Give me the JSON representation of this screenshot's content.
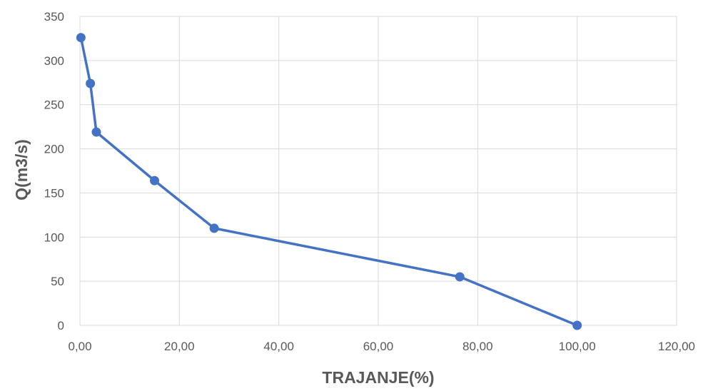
{
  "chart_data": {
    "type": "line",
    "title": "",
    "xlabel": "TRAJANJE(%)",
    "ylabel": "Q(m3/s)",
    "xlim": [
      0,
      120
    ],
    "ylim": [
      0,
      350
    ],
    "x_ticks": [
      "0,00",
      "20,00",
      "40,00",
      "60,00",
      "80,00",
      "100,00",
      "120,00"
    ],
    "y_ticks": [
      "0",
      "50",
      "100",
      "150",
      "200",
      "250",
      "300",
      "350"
    ],
    "grid": true,
    "legend": "none",
    "series": [
      {
        "color": "#4472c4",
        "marker": "circle",
        "x": [
          0.2,
          2.1,
          3.3,
          15.0,
          27.0,
          76.4,
          100.0
        ],
        "y": [
          326,
          274,
          219,
          164,
          110,
          55,
          0
        ]
      }
    ]
  }
}
